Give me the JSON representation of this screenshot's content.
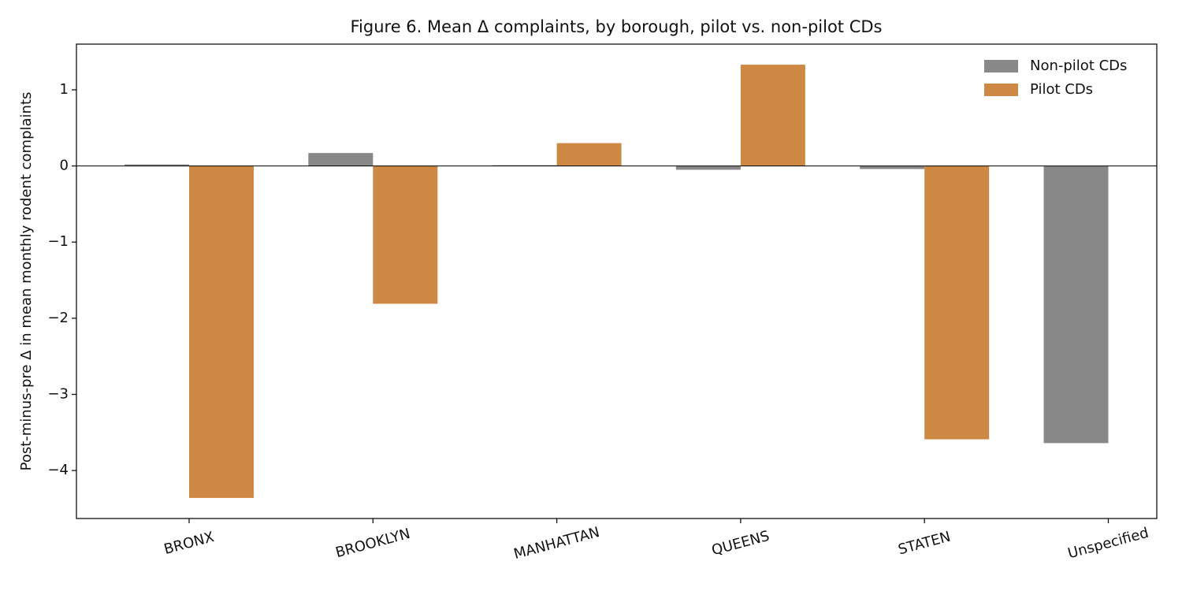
{
  "chart_data": {
    "type": "bar",
    "title": "Figure 6. Mean Δ complaints, by borough, pilot vs. non-pilot CDs",
    "y_label": "Post-minus-pre Δ in mean monthly rodent complaints",
    "categories": [
      "BRONX",
      "BROOKLYN",
      "MANHATTAN",
      "QUEENS",
      "STATEN",
      "Unspecified"
    ],
    "series": [
      {
        "name": "Non-pilot CDs",
        "color": "#888888",
        "values": [
          0.02,
          0.17,
          0.01,
          -0.05,
          -0.04,
          -3.64
        ]
      },
      {
        "name": "Pilot CDs",
        "color": "#cd8843",
        "values": [
          -4.36,
          -1.81,
          0.3,
          1.33,
          -3.59,
          null
        ]
      }
    ],
    "ylim": [
      -4.63,
      1.6
    ],
    "yticks": [
      {
        "value": -4,
        "label": "−4"
      },
      {
        "value": -3,
        "label": "−3"
      },
      {
        "value": -2,
        "label": "−2"
      },
      {
        "value": -1,
        "label": "−1"
      },
      0,
      1
    ],
    "legend": "upper right"
  }
}
